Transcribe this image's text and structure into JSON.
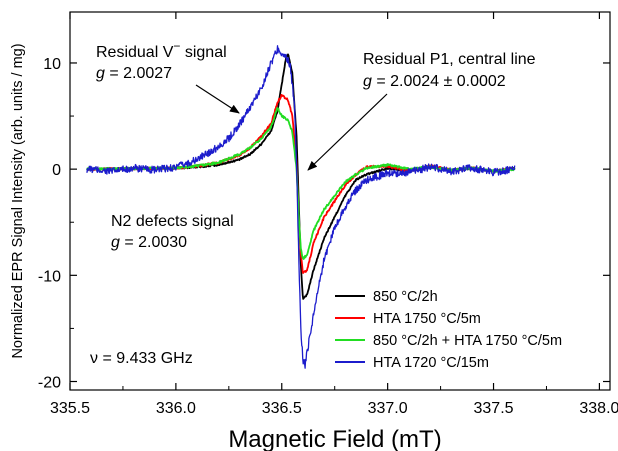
{
  "chart_data": {
    "type": "line",
    "xlabel": "Magnetic Field (mT)",
    "ylabel": "Normalized EPR Signal Intensity (arb. units / mg)",
    "xlim": [
      335.5,
      338.05
    ],
    "ylim": [
      -20.8,
      14.8
    ],
    "x_ticks": [
      335.5,
      336.0,
      336.5,
      337.0,
      337.5,
      338.0
    ],
    "x_tick_labels": [
      "335.5",
      "336.0",
      "336.5",
      "337.0",
      "337.5",
      "338.0"
    ],
    "y_ticks": [
      -20,
      -10,
      0,
      10
    ],
    "y_tick_labels": [
      "-20",
      "-10",
      "0",
      "10"
    ],
    "grid": false,
    "legend_position": "bottom-right",
    "series": [
      {
        "name": "850 °C/2h",
        "color": "#000000",
        "points": [
          [
            335.58,
            0
          ],
          [
            335.8,
            0.05
          ],
          [
            336.0,
            0.1
          ],
          [
            336.1,
            0.2
          ],
          [
            336.2,
            0.4
          ],
          [
            336.3,
            0.9
          ],
          [
            336.35,
            1.4
          ],
          [
            336.4,
            2.3
          ],
          [
            336.45,
            3.6
          ],
          [
            336.48,
            5.5
          ],
          [
            336.5,
            8.0
          ],
          [
            336.52,
            10.5
          ],
          [
            336.53,
            10.8
          ],
          [
            336.55,
            9.0
          ],
          [
            336.57,
            3.0
          ],
          [
            336.58,
            -3.0
          ],
          [
            336.59,
            -9.0
          ],
          [
            336.6,
            -12.2
          ],
          [
            336.62,
            -11.8
          ],
          [
            336.65,
            -9.5
          ],
          [
            336.7,
            -6.5
          ],
          [
            336.75,
            -4.5
          ],
          [
            336.8,
            -2.5
          ],
          [
            336.85,
            -1.0
          ],
          [
            336.9,
            -0.5
          ],
          [
            337.0,
            0.1
          ],
          [
            337.1,
            -0.2
          ],
          [
            337.2,
            0.2
          ],
          [
            337.3,
            -0.1
          ],
          [
            337.4,
            0.1
          ],
          [
            337.5,
            -0.2
          ],
          [
            337.6,
            0.1
          ]
        ]
      },
      {
        "name": "HTA 1750 °C/5m",
        "color": "#ff0000",
        "points": [
          [
            335.58,
            0
          ],
          [
            335.8,
            0.05
          ],
          [
            336.0,
            0.1
          ],
          [
            336.1,
            0.3
          ],
          [
            336.2,
            0.6
          ],
          [
            336.3,
            1.3
          ],
          [
            336.35,
            2.0
          ],
          [
            336.4,
            3.0
          ],
          [
            336.45,
            4.3
          ],
          [
            336.48,
            6.3
          ],
          [
            336.5,
            7.0
          ],
          [
            336.53,
            6.5
          ],
          [
            336.55,
            5.0
          ],
          [
            336.57,
            0.5
          ],
          [
            336.58,
            -4.5
          ],
          [
            336.59,
            -8.0
          ],
          [
            336.6,
            -9.8
          ],
          [
            336.62,
            -9.5
          ],
          [
            336.65,
            -7.0
          ],
          [
            336.7,
            -4.5
          ],
          [
            336.75,
            -3.0
          ],
          [
            336.8,
            -1.5
          ],
          [
            336.85,
            -0.5
          ],
          [
            336.9,
            0.2
          ],
          [
            337.0,
            0.3
          ],
          [
            337.1,
            -0.2
          ],
          [
            337.2,
            0.3
          ],
          [
            337.3,
            -0.1
          ],
          [
            337.4,
            0.1
          ],
          [
            337.5,
            -0.2
          ],
          [
            337.6,
            0.1
          ]
        ]
      },
      {
        "name": "850 °C/2h + HTA 1750 °C/5m",
        "color": "#22dd22",
        "points": [
          [
            335.58,
            0
          ],
          [
            335.8,
            0.05
          ],
          [
            336.0,
            0.1
          ],
          [
            336.1,
            0.3
          ],
          [
            336.2,
            0.6
          ],
          [
            336.3,
            1.4
          ],
          [
            336.35,
            2.0
          ],
          [
            336.4,
            2.8
          ],
          [
            336.45,
            4.0
          ],
          [
            336.48,
            5.8
          ],
          [
            336.5,
            5.0
          ],
          [
            336.53,
            4.6
          ],
          [
            336.55,
            3.5
          ],
          [
            336.57,
            0
          ],
          [
            336.58,
            -4.5
          ],
          [
            336.59,
            -7.5
          ],
          [
            336.6,
            -8.5
          ],
          [
            336.62,
            -8.0
          ],
          [
            336.65,
            -5.8
          ],
          [
            336.7,
            -3.8
          ],
          [
            336.75,
            -2.5
          ],
          [
            336.8,
            -1.2
          ],
          [
            336.85,
            -0.5
          ],
          [
            336.9,
            0.1
          ],
          [
            337.0,
            0.4
          ],
          [
            337.1,
            0
          ],
          [
            337.2,
            0.2
          ],
          [
            337.3,
            -0.1
          ],
          [
            337.4,
            0.1
          ],
          [
            337.5,
            -0.2
          ],
          [
            337.6,
            0
          ]
        ]
      },
      {
        "name": "HTA 1720 °C/15m",
        "color": "#1c1ccc",
        "points": [
          [
            335.58,
            0
          ],
          [
            335.7,
            -0.2
          ],
          [
            335.8,
            0.1
          ],
          [
            335.9,
            -0.1
          ],
          [
            336.0,
            0.2
          ],
          [
            336.05,
            0.5
          ],
          [
            336.1,
            0.9
          ],
          [
            336.15,
            1.5
          ],
          [
            336.2,
            2.1
          ],
          [
            336.25,
            2.9
          ],
          [
            336.3,
            4.2
          ],
          [
            336.35,
            5.8
          ],
          [
            336.4,
            7.5
          ],
          [
            336.45,
            10.0
          ],
          [
            336.48,
            11.3
          ],
          [
            336.5,
            11.0
          ],
          [
            336.52,
            10.5
          ],
          [
            336.54,
            9.8
          ],
          [
            336.56,
            6.0
          ],
          [
            336.57,
            0
          ],
          [
            336.58,
            -8.0
          ],
          [
            336.59,
            -15.0
          ],
          [
            336.6,
            -18.0
          ],
          [
            336.61,
            -18.5
          ],
          [
            336.63,
            -16.0
          ],
          [
            336.66,
            -12.5
          ],
          [
            336.7,
            -8.5
          ],
          [
            336.75,
            -5.5
          ],
          [
            336.8,
            -3.5
          ],
          [
            336.85,
            -2.0
          ],
          [
            336.9,
            -1.0
          ],
          [
            337.0,
            -0.4
          ],
          [
            337.1,
            -0.3
          ],
          [
            337.2,
            0.2
          ],
          [
            337.3,
            -0.2
          ],
          [
            337.4,
            0.1
          ],
          [
            337.5,
            -0.3
          ],
          [
            337.6,
            0
          ]
        ]
      }
    ],
    "annotations": [
      {
        "id": "residual-v",
        "lines": [
          "Residual V",
          "g = 2.0027"
        ],
        "superscript": "−",
        "suffix": " signal"
      },
      {
        "id": "residual-p1",
        "lines": [
          "Residual P1,  central line",
          "g = 2.0024 ± 0.0002"
        ]
      },
      {
        "id": "n2-defects",
        "lines": [
          "N2 defects signal",
          "g = 2.0030"
        ]
      },
      {
        "id": "frequency",
        "lines": [
          "ν = 9.433 GHz"
        ]
      }
    ]
  }
}
